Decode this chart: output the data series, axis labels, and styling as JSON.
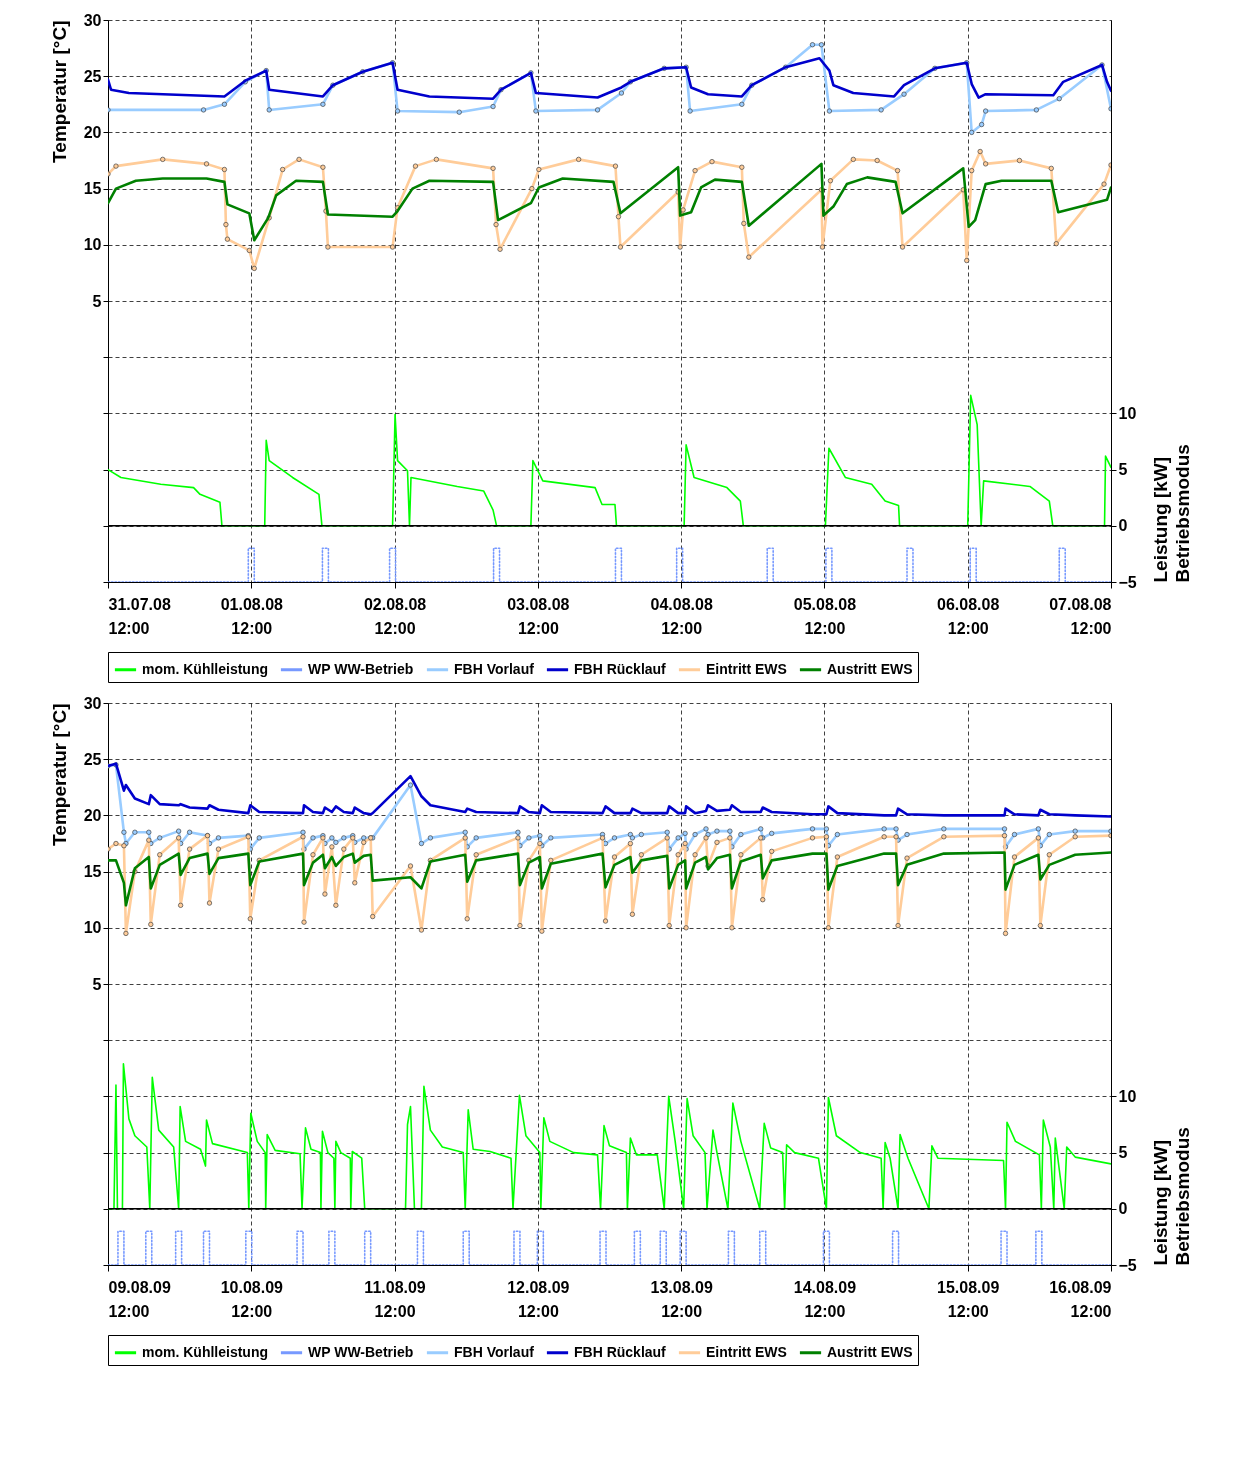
{
  "chart_data": [
    {
      "type": "line",
      "ylabel": "Temperatur [°C]",
      "y2label": "Leistung [kW]\nBetriebsmodus",
      "grid": true,
      "legend": "bottom",
      "xlim": [
        "--07-31T12:00",
        "--08-07T12:00"
      ],
      "xticks": [
        {
          "value": "--07-31T12:00",
          "label": "31.07.08 12:00"
        },
        {
          "value": "--08-01T12:00",
          "label": "01.08.08 12:00"
        },
        {
          "value": "--08-02T12:00",
          "label": "02.08.08 12:00"
        },
        {
          "value": "--08-03T12:00",
          "label": "03.08.08 12:00"
        },
        {
          "value": "--08-04T12:00",
          "label": "04.08.08 12:00"
        },
        {
          "value": "--08-05T12:00",
          "label": "05.08.08 12:00"
        },
        {
          "value": "--08-06T12:00",
          "label": "06.08.08 12:00"
        },
        {
          "value": "--08-07T12:00",
          "label": "07.08.08 12:00"
        }
      ],
      "ylim": [
        -20,
        30
      ],
      "yticks": [
        {
          "value": -20,
          "label": null
        },
        {
          "value": -15,
          "label": null
        },
        {
          "value": -10,
          "label": null
        },
        {
          "value": -5,
          "label": null
        },
        {
          "value": 0,
          "label": null
        },
        5,
        10,
        15,
        20,
        25,
        30
      ],
      "y2lim": [
        -5,
        45
      ],
      "y2ticks": [
        -5,
        0,
        5,
        10
      ],
      "ref_lines": [
        {
          "axis": "y2",
          "value": 0,
          "color": "#000000"
        }
      ],
      "series": [
        {
          "name": "mom. Kühlleistung",
          "color": "#00ff00",
          "axis": "y2",
          "x": [
            "--07-31T12:00",
            "--07-31T14:10",
            "--07-31T20:50",
            "--08-01T02:20",
            "--08-01T03:25",
            "--08-01T06:45",
            "--08-01T07:05",
            "--08-01T14:15",
            "--08-01T14:30",
            "--08-01T15:00",
            "--08-01T18:55",
            "--08-01T23:20",
            "--08-01T23:50",
            "--08-02T11:40",
            "--08-02T12:05",
            "--08-02T12:30",
            "--08-02T14:10",
            "--08-02T14:30",
            "--08-02T14:45",
            "--08-02T22:30",
            "--08-03T02:55",
            "--08-03T04:30",
            "--08-03T05:05",
            "--08-03T10:50",
            "--08-03T11:10",
            "--08-03T12:50",
            "--08-03T21:35",
            "--08-03T22:45",
            "--08-04T00:55",
            "--08-04T01:10",
            "--08-04T12:30",
            "--08-04T12:50",
            "--08-04T14:10",
            "--08-04T19:40",
            "--08-04T21:55",
            "--08-04T22:25",
            "--08-05T12:10",
            "--08-05T12:45",
            "--08-05T15:30",
            "--08-05T19:55",
            "--08-05T22:10",
            "--08-06T00:25",
            "--08-06T00:35",
            "--08-06T12:00",
            "--08-06T12:30",
            "--08-06T13:35",
            "--08-06T14:15",
            "--08-06T14:40",
            "--08-06T22:25",
            "--08-07T01:40",
            "--08-07T02:15",
            "--08-07T10:55",
            "--08-07T11:05",
            "--08-07T12:00"
          ],
          "values": [
            5.0,
            4.3,
            3.7,
            3.4,
            2.8,
            2.1,
            0,
            0,
            7.6,
            5.8,
            4.3,
            2.8,
            0,
            0,
            9.9,
            5.8,
            4.9,
            0,
            4.3,
            3.5,
            3.1,
            1.4,
            0,
            0,
            5.8,
            4.0,
            3.4,
            1.9,
            1.9,
            0,
            0,
            7.2,
            4.3,
            3.4,
            2.2,
            0,
            0,
            6.9,
            4.3,
            3.7,
            2.2,
            1.8,
            0,
            0,
            11.6,
            9.0,
            0,
            4.0,
            3.5,
            2.2,
            0,
            0,
            6.2,
            5.2
          ]
        },
        {
          "name": "WP WW-Betrieb",
          "color": "#7799ff",
          "axis": "y2",
          "line_style": "dotted",
          "x": [
            "--07-31T12:00",
            "--08-01T11:30",
            "--08-01T11:30",
            "--08-01T12:30",
            "--08-01T12:30",
            "--08-01T23:55",
            "--08-01T23:55",
            "--08-02T00:55",
            "--08-02T00:55",
            "--08-02T11:10",
            "--08-02T11:10",
            "--08-02T12:10",
            "--08-02T12:10",
            "--08-03T04:35",
            "--08-03T04:35",
            "--08-03T05:35",
            "--08-03T05:35",
            "--08-04T01:00",
            "--08-04T01:00",
            "--08-04T02:00",
            "--08-04T02:00",
            "--08-04T11:15",
            "--08-04T11:15",
            "--08-04T12:15",
            "--08-04T12:15",
            "--08-05T02:25",
            "--08-05T02:25",
            "--08-05T03:25",
            "--08-05T03:25",
            "--08-05T12:15",
            "--08-05T12:15",
            "--08-05T13:15",
            "--08-05T13:15",
            "--08-06T01:50",
            "--08-06T01:50",
            "--08-06T02:50",
            "--08-06T02:50",
            "--08-06T12:25",
            "--08-06T12:25",
            "--08-06T13:25",
            "--08-06T13:25",
            "--08-07T03:20",
            "--08-07T03:20",
            "--08-07T04:20",
            "--08-07T04:20",
            "--08-07T12:00"
          ],
          "values": [
            -5,
            -5,
            -2,
            -2,
            -5,
            -5,
            -2,
            -2,
            -5,
            -5,
            -2,
            -2,
            -5,
            -5,
            -2,
            -2,
            -5,
            -5,
            -2,
            -2,
            -5,
            -5,
            -2,
            -2,
            -5,
            -5,
            -2,
            -2,
            -5,
            -5,
            -2,
            -2,
            -5,
            -5,
            -2,
            -2,
            -5,
            -5,
            -2,
            -2,
            -5,
            -5,
            -2,
            -2,
            -5,
            -5
          ]
        },
        {
          "name": "FBH Vorlauf",
          "color": "#99ccff",
          "marker": "circle",
          "x": [
            "--07-31T12:00",
            "--08-01T04:00",
            "--08-01T07:30",
            "--08-01T11:00",
            "--08-01T14:30",
            "--08-01T15:00",
            "--08-02T00:00",
            "--08-02T01:40",
            "--08-02T06:40",
            "--08-02T11:40",
            "--08-02T12:30",
            "--08-02T22:50",
            "--08-03T04:30",
            "--08-03T05:50",
            "--08-03T10:50",
            "--08-03T11:40",
            "--08-03T22:00",
            "--08-04T02:00",
            "--08-04T03:30",
            "--08-04T09:10",
            "--08-04T12:50",
            "--08-04T13:30",
            "--08-04T22:10",
            "--08-04T23:50",
            "--08-05T05:30",
            "--08-05T10:00",
            "--08-05T11:30",
            "--08-05T12:50",
            "--08-05T21:30",
            "--08-06T01:20",
            "--08-06T06:30",
            "--08-06T11:50",
            "--08-06T12:40",
            "--08-06T14:20",
            "--08-06T15:00",
            "--08-06T23:30",
            "--08-07T03:20",
            "--08-07T10:30",
            "--08-07T12:00"
          ],
          "values": [
            22.0,
            22.0,
            22.5,
            24.5,
            25.5,
            22.0,
            22.5,
            24.2,
            25.4,
            26.2,
            21.9,
            21.8,
            22.3,
            23.8,
            25.3,
            21.9,
            22.0,
            23.5,
            24.5,
            25.7,
            25.8,
            21.9,
            22.5,
            24.2,
            25.8,
            27.8,
            27.8,
            21.9,
            22.0,
            23.4,
            25.7,
            26.2,
            20.0,
            20.7,
            21.9,
            22.0,
            23.0,
            26.0,
            22.1
          ]
        },
        {
          "name": "FBH Rücklauf",
          "color": "#0000cc",
          "x": [
            "--07-31T12:00",
            "--07-31T12:30",
            "--07-31T15:30",
            "--08-01T07:30",
            "--08-01T11:00",
            "--08-01T14:30",
            "--08-01T15:00",
            "--08-02T00:00",
            "--08-02T01:40",
            "--08-02T06:40",
            "--08-02T11:40",
            "--08-02T12:30",
            "--08-02T17:50",
            "--08-03T04:30",
            "--08-03T05:50",
            "--08-03T10:50",
            "--08-03T11:40",
            "--08-03T22:00",
            "--08-04T02:00",
            "--08-04T03:30",
            "--08-04T09:10",
            "--08-04T12:50",
            "--08-04T13:40",
            "--08-04T16:30",
            "--08-04T22:10",
            "--08-04T23:50",
            "--08-05T05:30",
            "--08-05T11:10",
            "--08-05T12:50",
            "--08-05T13:30",
            "--08-05T16:50",
            "--08-05T23:40",
            "--08-06T01:20",
            "--08-06T06:30",
            "--08-06T11:50",
            "--08-06T12:40",
            "--08-06T13:50",
            "--08-06T15:00",
            "--08-07T02:20",
            "--08-07T04:00",
            "--08-07T10:30",
            "--08-07T11:20",
            "--08-07T12:00"
          ],
          "values": [
            24.7,
            23.8,
            23.5,
            23.2,
            24.6,
            25.5,
            23.8,
            23.2,
            24.2,
            25.4,
            26.2,
            23.8,
            23.2,
            23.0,
            23.8,
            25.3,
            23.5,
            23.1,
            24.0,
            24.5,
            25.7,
            25.8,
            24.0,
            23.4,
            23.2,
            24.2,
            25.8,
            26.6,
            25.5,
            24.2,
            23.5,
            23.2,
            24.2,
            25.7,
            26.2,
            24.3,
            23.1,
            23.4,
            23.3,
            24.5,
            26.0,
            24.5,
            23.7
          ]
        },
        {
          "name": "Eintritt EWS",
          "color": "#ffcc99",
          "marker": "circle",
          "x": [
            "--07-31T12:00",
            "--07-31T13:20",
            "--07-31T21:10",
            "--08-01T04:30",
            "--08-01T07:30",
            "--08-01T07:45",
            "--08-01T08:00",
            "--08-01T11:40",
            "--08-01T12:30",
            "--08-01T15:00",
            "--08-01T17:15",
            "--08-01T20:00",
            "--08-02T00:00",
            "--08-02T00:30",
            "--08-02T00:50",
            "--08-02T11:40",
            "--08-02T12:30",
            "--08-02T15:30",
            "--08-02T19:00",
            "--08-03T04:30",
            "--08-03T05:00",
            "--08-03T05:40",
            "--08-03T11:00",
            "--08-03T12:10",
            "--08-03T18:50",
            "--08-04T01:00",
            "--08-04T01:30",
            "--08-04T01:50",
            "--08-04T11:30",
            "--08-04T11:50",
            "--08-04T12:20",
            "--08-04T14:20",
            "--08-04T17:10",
            "--08-04T22:10",
            "--08-04T22:30",
            "--08-04T23:20",
            "--08-05T11:30",
            "--08-05T11:40",
            "--08-05T13:00",
            "--08-05T16:50",
            "--08-05T20:50",
            "--08-06T00:15",
            "--08-06T01:05",
            "--08-06T11:15",
            "--08-06T11:50",
            "--08-06T12:40",
            "--08-06T14:05",
            "--08-06T15:00",
            "--08-06T20:40",
            "--08-07T02:00",
            "--08-07T02:50",
            "--08-07T10:50",
            "--08-07T12:00"
          ],
          "values": [
            16.3,
            17.0,
            17.6,
            17.2,
            16.7,
            11.8,
            10.5,
            9.5,
            7.9,
            12.4,
            16.7,
            17.6,
            16.9,
            13.0,
            9.8,
            9.8,
            13.3,
            17.0,
            17.6,
            16.8,
            11.8,
            9.6,
            15.0,
            16.7,
            17.6,
            17.0,
            12.5,
            9.8,
            14.7,
            9.8,
            13.1,
            16.6,
            17.4,
            16.9,
            11.9,
            8.9,
            14.9,
            9.8,
            15.7,
            17.6,
            17.5,
            16.6,
            9.8,
            14.9,
            8.6,
            16.6,
            18.3,
            17.2,
            17.5,
            16.8,
            10.1,
            15.4,
            17.1
          ]
        },
        {
          "name": "Austritt EWS",
          "color": "#008000",
          "x": [
            "--07-31T12:00",
            "--07-31T13:20",
            "--07-31T16:40",
            "--07-31T21:10",
            "--08-01T04:30",
            "--08-01T07:30",
            "--08-01T08:00",
            "--08-01T11:40",
            "--08-01T12:30",
            "--08-01T14:50",
            "--08-01T16:10",
            "--08-01T19:30",
            "--08-02T00:00",
            "--08-02T00:50",
            "--08-02T11:40",
            "--08-02T12:30",
            "--08-02T15:00",
            "--08-02T17:50",
            "--08-03T04:30",
            "--08-03T05:20",
            "--08-03T10:50",
            "--08-03T12:10",
            "--08-03T16:10",
            "--08-04T00:40",
            "--08-04T01:50",
            "--08-04T11:30",
            "--08-04T11:50",
            "--08-04T13:40",
            "--08-04T15:20",
            "--08-04T17:40",
            "--08-04T22:10",
            "--08-04T23:20",
            "--08-05T11:30",
            "--08-05T11:50",
            "--08-05T13:30",
            "--08-05T15:45",
            "--08-05T19:10",
            "--08-05T23:55",
            "--08-06T01:05",
            "--08-06T11:15",
            "--08-06T12:10",
            "--08-06T13:15",
            "--08-06T15:00",
            "--08-06T17:40",
            "--08-07T02:00",
            "--08-07T03:10",
            "--08-07T11:20",
            "--08-07T12:00"
          ],
          "values": [
            13.7,
            15.0,
            15.7,
            15.9,
            15.9,
            15.6,
            13.6,
            12.8,
            10.4,
            12.4,
            14.4,
            15.7,
            15.6,
            12.7,
            12.5,
            13.0,
            15.0,
            15.7,
            15.6,
            12.2,
            13.7,
            15.1,
            15.9,
            15.6,
            12.8,
            16.9,
            12.6,
            12.9,
            15.1,
            15.8,
            15.6,
            11.7,
            17.2,
            12.6,
            13.4,
            15.4,
            16.0,
            15.6,
            12.8,
            16.8,
            11.6,
            12.2,
            15.4,
            15.7,
            15.7,
            12.9,
            14.0,
            15.1
          ]
        }
      ]
    },
    {
      "type": "line",
      "ylabel": "Temperatur [°C]",
      "y2label": "Leistung [kW]\nBetriebsmodus",
      "grid": true,
      "legend": "bottom",
      "xlim": [
        "--08-09T12:00",
        "--08-16T12:00"
      ],
      "xticks": [
        {
          "value": "--08-09T12:00",
          "label": "09.08.09 12:00"
        },
        {
          "value": "--08-10T12:00",
          "label": "10.08.09 12:00"
        },
        {
          "value": "--08-11T12:00",
          "label": "11.08.09 12:00"
        },
        {
          "value": "--08-12T12:00",
          "label": "12.08.09 12:00"
        },
        {
          "value": "--08-13T12:00",
          "label": "13.08.09 12:00"
        },
        {
          "value": "--08-14T12:00",
          "label": "14.08.09 12:00"
        },
        {
          "value": "--08-15T12:00",
          "label": "15.08.09 12:00"
        },
        {
          "value": "--08-16T12:00",
          "label": "16.08.09 12:00"
        }
      ],
      "ylim": [
        -20,
        30
      ],
      "yticks": [
        {
          "value": -20,
          "label": null
        },
        {
          "value": -15,
          "label": null
        },
        {
          "value": -10,
          "label": null
        },
        {
          "value": -5,
          "label": null
        },
        {
          "value": 0,
          "label": null
        },
        5,
        10,
        15,
        20,
        25,
        30
      ],
      "y2lim": [
        -5,
        45
      ],
      "y2ticks": [
        -5,
        0,
        5,
        10
      ],
      "ref_lines": [
        {
          "axis": "y2",
          "value": 0,
          "color": "#000000"
        }
      ],
      "x": [
        "--08-09T12:00",
        "--08-09T13:20",
        "--08-09T14:40",
        "--08-09T15:00",
        "--08-09T16:30",
        "--08-09T18:50",
        "--08-09T19:10",
        "--08-09T20:40",
        "--08-09T23:50",
        "--08-10T00:10",
        "--08-10T01:40",
        "--08-10T04:40",
        "--08-10T05:00",
        "--08-10T06:30",
        "--08-10T11:30",
        "--08-10T11:50",
        "--08-10T13:20",
        "--08-10T20:40",
        "--08-10T20:50",
        "--08-10T22:20",
        "--08-11T00:00",
        "--08-11T00:20",
        "--08-11T01:30",
        "--08-11T02:10",
        "--08-11T03:30",
        "--08-11T05:00",
        "--08-11T05:20",
        "--08-11T06:50",
        "--08-11T08:00",
        "--08-11T08:20",
        "--08-11T14:40",
        "--08-11T16:30",
        "--08-11T18:00",
        "--08-11T23:50",
        "--08-12T00:10",
        "--08-12T01:40",
        "--08-12T08:40",
        "--08-12T09:00",
        "--08-12T10:30",
        "--08-12T12:20",
        "--08-12T12:40",
        "--08-12T14:10",
        "--08-12T22:50",
        "--08-12T23:20",
        "--08-13T00:50",
        "--08-13T03:30",
        "--08-13T03:50",
        "--08-13T05:20",
        "--08-13T09:40",
        "--08-13T10:00",
        "--08-13T11:30",
        "--08-13T12:40",
        "--08-13T12:50",
        "--08-13T14:20",
        "--08-13T16:10",
        "--08-13T16:30",
        "--08-13T18:00",
        "--08-13T20:10",
        "--08-13T20:30",
        "--08-13T22:00",
        "--08-14T01:20",
        "--08-14T01:40",
        "--08-14T03:10",
        "--08-14T10:00",
        "--08-14T12:20",
        "--08-14T12:40",
        "--08-14T14:10",
        "--08-14T22:00",
        "--08-15T00:00",
        "--08-15T00:20",
        "--08-15T01:50",
        "--08-15T08:00",
        "--08-15T18:10",
        "--08-15T18:20",
        "--08-15T19:50",
        "--08-15T23:50",
        "--08-16T00:10",
        "--08-16T01:40",
        "--08-16T06:00",
        "--08-16T12:00"
      ],
      "series": [
        {
          "name": "mom. Kühlleistung",
          "color": "#00ff00",
          "axis": "y2",
          "x": [
            "--08-09T12:00",
            "--08-09T13:00",
            "--08-09T13:20",
            "--08-09T13:35",
            "--08-09T14:25",
            "--08-09T14:35",
            "--08-09T15:30",
            "--08-09T16:30",
            "--08-09T18:30",
            "--08-09T19:00",
            "--08-09T19:25",
            "--08-09T20:30",
            "--08-09T23:00",
            "--08-09T23:50",
            "--08-10T00:05",
            "--08-10T01:00",
            "--08-10T03:30",
            "--08-10T04:20",
            "--08-10T04:30",
            "--08-10T05:30",
            "--08-10T11:20",
            "--08-10T11:35",
            "--08-10T11:55",
            "--08-10T13:00",
            "--08-10T14:20",
            "--08-10T14:25",
            "--08-10T14:40",
            "--08-10T16:00",
            "--08-10T20:10",
            "--08-10T20:30",
            "--08-10T21:05",
            "--08-10T22:00",
            "--08-10T23:35",
            "--08-10T23:40",
            "--08-10T23:55",
            "--08-11T00:50",
            "--08-11T01:50",
            "--08-11T02:00",
            "--08-11T02:10",
            "--08-11T03:00",
            "--08-11T04:35",
            "--08-11T04:40",
            "--08-11T04:55",
            "--08-11T06:30",
            "--08-11T07:00",
            "--08-11T13:50",
            "--08-11T14:10",
            "--08-11T14:40",
            "--08-11T15:20",
            "--08-11T16:30",
            "--08-11T16:55",
            "--08-11T18:00",
            "--08-11T20:00",
            "--08-11T23:30",
            "--08-11T23:50",
            "--08-12T00:20",
            "--08-12T01:10",
            "--08-12T04:00",
            "--08-12T07:30",
            "--08-12T07:50",
            "--08-12T08:55",
            "--08-12T10:00",
            "--08-12T12:20",
            "--08-12T12:30",
            "--08-12T13:00",
            "--08-12T14:00",
            "--08-12T18:00",
            "--08-12T22:00",
            "--08-12T22:30",
            "--08-12T23:05",
            "--08-13T00:00",
            "--08-13T02:50",
            "--08-13T03:00",
            "--08-13T03:30",
            "--08-13T04:30",
            "--08-13T08:00",
            "--08-13T09:10",
            "--08-13T09:55",
            "--08-13T11:00",
            "--08-13T12:25",
            "--08-13T13:00",
            "--08-13T14:00",
            "--08-13T16:00",
            "--08-13T16:20",
            "--08-13T17:20",
            "--08-13T18:00",
            "--08-13T19:50",
            "--08-13T20:40",
            "--08-13T22:00",
            "--08-14T01:10",
            "--08-14T01:55",
            "--08-14T03:00",
            "--08-14T05:00",
            "--08-14T05:20",
            "--08-14T05:40",
            "--08-14T07:00",
            "--08-14T11:00",
            "--08-14T12:20",
            "--08-14T12:40",
            "--08-14T14:00",
            "--08-14T18:00",
            "--08-14T21:30",
            "--08-14T21:50",
            "--08-14T22:10",
            "--08-14T23:00",
            "--08-15T00:20",
            "--08-15T00:40",
            "--08-15T02:00",
            "--08-15T05:30",
            "--08-15T06:00",
            "--08-15T07:00",
            "--08-15T18:00",
            "--08-15T18:20",
            "--08-15T18:35",
            "--08-15T20:00",
            "--08-16T00:00",
            "--08-16T00:20",
            "--08-16T00:40",
            "--08-16T01:50",
            "--08-16T02:25",
            "--08-16T02:40",
            "--08-16T04:10",
            "--08-16T04:35",
            "--08-16T06:00",
            "--08-16T12:00"
          ],
          "values": [
            0,
            0,
            11.0,
            0,
            0,
            12.9,
            8.0,
            6.5,
            5.5,
            0,
            11.7,
            7.0,
            5.5,
            0,
            9.1,
            6.0,
            5.3,
            3.8,
            7.9,
            5.8,
            5.0,
            0,
            8.5,
            6.0,
            5.0,
            0,
            6.6,
            5.2,
            4.9,
            0,
            7.2,
            5.3,
            5.0,
            0,
            6.9,
            5.0,
            4.5,
            0,
            6.0,
            5.0,
            4.5,
            0,
            5.1,
            4.5,
            0,
            0,
            7.5,
            9.1,
            0,
            0,
            10.9,
            7.0,
            5.5,
            5.0,
            0,
            8.8,
            5.3,
            5.1,
            4.5,
            0,
            10.1,
            6.5,
            5.0,
            0,
            8.1,
            6.0,
            5.0,
            4.8,
            0,
            7.4,
            5.6,
            5.0,
            0,
            6.3,
            4.8,
            4.8,
            0,
            10.0,
            6.0,
            0,
            9.8,
            6.5,
            5.0,
            0,
            7.0,
            5.0,
            0,
            9.4,
            6.0,
            0,
            7.6,
            5.4,
            5.0,
            0,
            5.7,
            5.0,
            4.5,
            0,
            9.9,
            6.5,
            5.0,
            4.5,
            0,
            5.9,
            4.5,
            0,
            6.6,
            4.5,
            0,
            5.6,
            4.5,
            4.3,
            0,
            7.7,
            6.0,
            4.8,
            0,
            7.9,
            5.5,
            0,
            6.3,
            0,
            5.5,
            4.6,
            4.0
          ]
        },
        {
          "name": "WP WW-Betrieb",
          "color": "#7799ff",
          "axis": "y2",
          "line_style": "dotted",
          "x": [
            "--08-09T12:00",
            "--08-09T13:40",
            "--08-09T13:40",
            "--08-09T14:40",
            "--08-09T14:40",
            "--08-09T18:20",
            "--08-09T18:20",
            "--08-09T19:20",
            "--08-09T19:20",
            "--08-09T23:20",
            "--08-09T23:20",
            "--08-10T00:20",
            "--08-10T00:20",
            "--08-10T04:00",
            "--08-10T04:00",
            "--08-10T05:00",
            "--08-10T05:00",
            "--08-10T11:05",
            "--08-10T11:05",
            "--08-10T12:05",
            "--08-10T12:05",
            "--08-10T19:40",
            "--08-10T19:40",
            "--08-10T20:40",
            "--08-10T20:40",
            "--08-11T01:00",
            "--08-11T01:00",
            "--08-11T02:00",
            "--08-11T02:00",
            "--08-11T07:00",
            "--08-11T07:00",
            "--08-11T08:00",
            "--08-11T08:00",
            "--08-11T15:50",
            "--08-11T15:50",
            "--08-11T16:50",
            "--08-11T16:50",
            "--08-11T23:30",
            "--08-11T23:30",
            "--08-12T00:30",
            "--08-12T00:30",
            "--08-12T08:00",
            "--08-12T08:00",
            "--08-12T09:00",
            "--08-12T09:00",
            "--08-12T11:55",
            "--08-12T11:55",
            "--08-12T12:55",
            "--08-12T12:55",
            "--08-12T22:25",
            "--08-12T22:25",
            "--08-12T23:25",
            "--08-12T23:25",
            "--08-13T04:10",
            "--08-13T04:10",
            "--08-13T05:10",
            "--08-13T05:10",
            "--08-13T08:30",
            "--08-13T08:30",
            "--08-13T09:30",
            "--08-13T09:30",
            "--08-13T11:50",
            "--08-13T11:50",
            "--08-13T12:50",
            "--08-13T12:50",
            "--08-13T19:55",
            "--08-13T19:55",
            "--08-13T20:55",
            "--08-13T20:55",
            "--08-14T01:10",
            "--08-14T01:10",
            "--08-14T02:10",
            "--08-14T02:10",
            "--08-14T11:50",
            "--08-14T11:50",
            "--08-14T12:50",
            "--08-14T12:50",
            "--08-14T23:25",
            "--08-14T23:25",
            "--08-15T00:25",
            "--08-15T00:25",
            "--08-15T17:35",
            "--08-15T17:35",
            "--08-15T18:35",
            "--08-15T18:35",
            "--08-15T23:25",
            "--08-15T23:25",
            "--08-16T00:25",
            "--08-16T00:25",
            "--08-16T12:00"
          ],
          "values": [
            -5,
            -5,
            -2,
            -2,
            -5,
            -5,
            -2,
            -2,
            -5,
            -5,
            -2,
            -2,
            -5,
            -5,
            -2,
            -2,
            -5,
            -5,
            -2,
            -2,
            -5,
            -5,
            -2,
            -2,
            -5,
            -5,
            -2,
            -2,
            -5,
            -5,
            -2,
            -2,
            -5,
            -5,
            -2,
            -2,
            -5,
            -5,
            -2,
            -2,
            -5,
            -5,
            -2,
            -2,
            -5,
            -5,
            -2,
            -2,
            -5,
            -5,
            -2,
            -2,
            -5,
            -5,
            -2,
            -2,
            -5,
            -5,
            -2,
            -2,
            -5,
            -5,
            -2,
            -2,
            -5,
            -5,
            -2,
            -2,
            -5,
            -5,
            -2,
            -2,
            -5,
            -5,
            -2,
            -2,
            -5,
            -5,
            -2,
            -2,
            -5,
            -5,
            -2,
            -2,
            -5,
            -5,
            -2,
            -2,
            -5,
            -5
          ]
        },
        {
          "name": "FBH Vorlauf",
          "color": "#99ccff",
          "marker": "circle",
          "values": [
            24.4,
            24.5,
            18.5,
            17.5,
            18.5,
            18.5,
            17.5,
            18.0,
            18.6,
            17.5,
            18.5,
            18.2,
            17.5,
            18.0,
            18.2,
            17.0,
            18.0,
            18.5,
            17.0,
            18.0,
            18.2,
            17.5,
            18.0,
            17.6,
            18.0,
            18.2,
            17.6,
            18.0,
            18.0,
            18.0,
            22.7,
            17.5,
            18.0,
            18.5,
            17.2,
            18.0,
            18.5,
            17.3,
            18.0,
            18.2,
            17.3,
            18.0,
            18.3,
            17.5,
            18.0,
            18.3,
            18.0,
            18.3,
            18.5,
            17.0,
            18.0,
            18.4,
            17.0,
            18.3,
            18.8,
            18.3,
            18.6,
            18.6,
            17.2,
            18.3,
            18.8,
            18.0,
            18.4,
            18.8,
            18.8,
            17.3,
            18.3,
            18.8,
            18.8,
            17.8,
            18.3,
            18.8,
            18.8,
            17.2,
            18.3,
            18.8,
            17.3,
            18.3,
            18.6,
            18.6
          ]
        },
        {
          "name": "FBH Rücklauf",
          "color": "#0000cc",
          "values": [
            24.4,
            24.6,
            22.2,
            22.7,
            21.5,
            21.0,
            21.8,
            21.0,
            20.9,
            21.0,
            20.7,
            20.6,
            20.9,
            20.5,
            20.2,
            20.9,
            20.3,
            20.2,
            20.9,
            20.3,
            20.2,
            20.7,
            20.3,
            20.8,
            20.3,
            20.2,
            20.7,
            20.2,
            20.1,
            20.2,
            23.5,
            21.7,
            20.9,
            20.3,
            20.6,
            20.3,
            20.2,
            20.8,
            20.3,
            20.2,
            20.9,
            20.3,
            20.2,
            20.8,
            20.2,
            20.2,
            20.6,
            20.2,
            20.2,
            20.8,
            20.2,
            20.2,
            20.8,
            20.2,
            20.4,
            20.9,
            20.4,
            20.5,
            20.9,
            20.3,
            20.3,
            20.7,
            20.3,
            20.1,
            20.1,
            20.8,
            20.2,
            20.0,
            20.0,
            20.6,
            20.1,
            20.0,
            20.0,
            20.6,
            20.1,
            20.0,
            20.5,
            20.1,
            20.0,
            19.9
          ]
        },
        {
          "name": "Eintritt EWS",
          "color": "#ffcc99",
          "marker": "circle",
          "values": [
            17.0,
            17.5,
            17.3,
            9.5,
            15.0,
            17.8,
            10.3,
            16.5,
            18.0,
            12.0,
            17.0,
            18.2,
            12.2,
            17.0,
            18.1,
            10.8,
            16.0,
            18.1,
            10.5,
            16.5,
            18.0,
            13.0,
            17.2,
            12.0,
            17.0,
            18.0,
            14.0,
            17.6,
            18.0,
            11.0,
            15.5,
            9.8,
            16.0,
            18.0,
            10.8,
            16.5,
            18.0,
            10.2,
            16.0,
            17.5,
            9.7,
            16.0,
            18.0,
            10.6,
            16.3,
            17.5,
            11.2,
            16.5,
            18.0,
            10.2,
            16.5,
            17.5,
            10.0,
            16.5,
            18.0,
            15.5,
            17.6,
            18.0,
            10.0,
            16.5,
            18.0,
            12.5,
            16.8,
            18.0,
            18.1,
            10.0,
            16.3,
            18.1,
            18.1,
            10.2,
            16.2,
            18.1,
            18.2,
            9.5,
            16.3,
            18.0,
            10.2,
            16.5,
            18.1,
            18.2
          ]
        },
        {
          "name": "Austritt EWS",
          "color": "#008000",
          "values": [
            16.0,
            16.0,
            14.0,
            12.0,
            15.3,
            16.3,
            13.5,
            15.6,
            16.6,
            14.7,
            16.2,
            16.6,
            14.8,
            16.2,
            16.6,
            13.8,
            15.9,
            16.6,
            13.8,
            15.8,
            16.5,
            15.3,
            16.3,
            15.5,
            16.3,
            16.6,
            15.8,
            16.4,
            16.5,
            14.2,
            14.5,
            13.5,
            15.9,
            16.5,
            14.1,
            16.0,
            16.6,
            13.8,
            15.8,
            16.3,
            13.5,
            15.7,
            16.6,
            13.6,
            15.6,
            16.3,
            14.9,
            16.0,
            16.4,
            13.5,
            15.6,
            16.0,
            13.5,
            15.8,
            16.3,
            15.2,
            16.2,
            16.5,
            13.5,
            15.9,
            16.5,
            14.4,
            16.0,
            16.6,
            16.6,
            13.4,
            15.5,
            16.6,
            16.6,
            13.8,
            15.6,
            16.6,
            16.7,
            13.4,
            15.6,
            16.5,
            14.3,
            15.6,
            16.5,
            16.7
          ]
        }
      ]
    }
  ]
}
